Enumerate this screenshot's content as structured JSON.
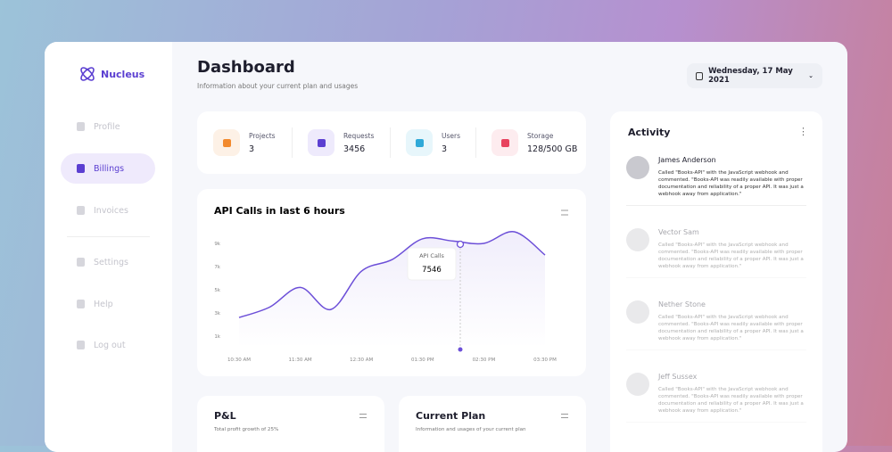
{
  "brand": "Nucleus",
  "nav": [
    "Profile",
    "Billings",
    "Invoices",
    "Settings",
    "Help",
    "Log out"
  ],
  "header": {
    "title": "Dashboard",
    "subtitle": "Information about your current plan and usages",
    "date": "Wednesday, 17 May 2021"
  },
  "stats": [
    {
      "label": "Projects",
      "value": 3
    },
    {
      "label": "Requests",
      "value": 3456
    },
    {
      "label": "Users",
      "value": 3
    },
    {
      "label": "Storage",
      "value": "128/500 GB"
    }
  ],
  "chart_data": {
    "type": "line",
    "title": "API Calls in last 6 hours",
    "categories": [
      "10:30 AM",
      null,
      "11:30 AM",
      null,
      "12:30 AM",
      null,
      "01:30 PM",
      null,
      "02:30 PM",
      null,
      "03:30 PM"
    ],
    "values": [
      2600,
      3500,
      5200,
      3300,
      6600,
      7600,
      9400,
      9200,
      9000,
      10000,
      8000
    ],
    "color": "#6c4fd8",
    "ylim": [
      0,
      11000
    ],
    "yticks": [
      {
        "value": 1000,
        "label": "1k"
      },
      {
        "value": 3000,
        "label": "3k"
      },
      {
        "value": 5000,
        "label": "5k"
      },
      {
        "value": 7000,
        "label": "7k"
      },
      {
        "value": 9000,
        "label": "9k"
      }
    ],
    "grid": false,
    "tooltip": {
      "label": "API Calls",
      "value": 7546
    }
  },
  "activity": {
    "title": "Activity",
    "items": [
      {
        "name": "James Anderson",
        "text": "Called \"Books-API\" with the JavaScript webhook and commented. \"Books-API was readily available with proper documentation and reliability of a proper API. It was just a webhook away from application.\""
      },
      {
        "name": "Vector Sam",
        "text": "Called \"Books-API\" with the JavaScript webhook and commented. \"Books-API was readily available with proper documentation and reliability of a proper API. It was just a webhook away from application.\""
      },
      {
        "name": "Nether Stone",
        "text": "Called \"Books-API\" with the JavaScript webhook and commented. \"Books-API was readily available with proper documentation and reliability of a proper API. It was just a webhook away from application.\""
      },
      {
        "name": "Jeff Sussex",
        "text": "Called \"Books-API\" with the JavaScript webhook and commented. \"Books-API was readily available with proper documentation and reliability of a proper API. It was just a webhook away from application.\""
      }
    ]
  },
  "cards": [
    {
      "title": "P&L",
      "subtitle": "Total profit growth of 25%"
    },
    {
      "title": "Current Plan",
      "subtitle": "Information and usages of your current plan"
    }
  ]
}
